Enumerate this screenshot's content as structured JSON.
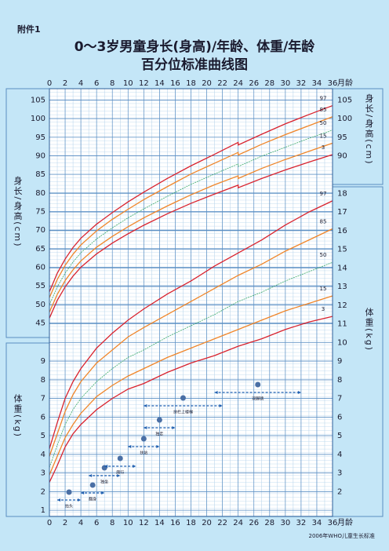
{
  "chart_data": {
    "type": "line",
    "annex": "附件1",
    "title": "0～3岁男童身长(身高)/年龄、体重/年龄",
    "subtitle": "百分位标准曲线图",
    "source": "2006年WHO儿童生长标准",
    "xlabel": "月龄",
    "xlim": [
      0,
      36
    ],
    "xticks": [
      0,
      2,
      4,
      6,
      8,
      10,
      12,
      14,
      16,
      18,
      20,
      22,
      24,
      26,
      28,
      30,
      32,
      34,
      36
    ],
    "length": {
      "ylabel": "身长/身高(cm)",
      "ylim": [
        44,
        107
      ],
      "yticks": [
        45,
        50,
        55,
        60,
        65,
        70,
        75,
        80,
        85,
        90,
        95,
        100,
        105
      ],
      "y2ticks": [
        90,
        95,
        100,
        105
      ],
      "x": [
        0,
        1,
        2,
        3,
        4,
        6,
        8,
        10,
        12,
        15,
        18,
        21,
        24,
        24,
        27,
        30,
        33,
        36
      ],
      "series": [
        {
          "name": "97",
          "color": "#d9232e",
          "values": [
            53.4,
            58.4,
            62.2,
            65.3,
            67.8,
            71.6,
            74.7,
            77.6,
            80.2,
            83.9,
            87.3,
            90.4,
            93.6,
            92.9,
            95.8,
            98.6,
            101.1,
            103.5
          ]
        },
        {
          "name": "85",
          "color": "#f0862a",
          "values": [
            51.8,
            56.7,
            60.5,
            63.5,
            66.0,
            69.8,
            72.9,
            75.6,
            78.2,
            81.7,
            85.1,
            88.0,
            90.9,
            90.2,
            93.1,
            95.7,
            98.1,
            100.5
          ]
        },
        {
          "name": "50",
          "color": "#3aa86a",
          "values": [
            49.9,
            54.7,
            58.4,
            61.4,
            63.9,
            67.6,
            70.6,
            73.3,
            75.7,
            79.1,
            82.3,
            85.1,
            87.8,
            87.1,
            89.9,
            92.3,
            94.7,
            96.9
          ]
        },
        {
          "name": "15",
          "color": "#f0862a",
          "values": [
            47.9,
            52.7,
            56.4,
            59.3,
            61.7,
            65.4,
            68.3,
            70.9,
            73.3,
            76.5,
            79.5,
            82.2,
            84.6,
            83.9,
            86.6,
            89.0,
            91.2,
            93.4
          ]
        },
        {
          "name": "3",
          "color": "#d9232e",
          "values": [
            46.3,
            51.1,
            54.7,
            57.6,
            60.0,
            63.6,
            66.5,
            69.0,
            71.3,
            74.4,
            77.2,
            79.7,
            82.1,
            81.4,
            83.9,
            86.2,
            88.3,
            90.3
          ]
        }
      ]
    },
    "weight": {
      "ylabel": "体重(kg)",
      "ylim": [
        0.5,
        19
      ],
      "yticks": [
        1,
        2,
        3,
        4,
        5,
        6,
        7,
        8,
        9
      ],
      "y2ticks": [
        2,
        3,
        4,
        5,
        6,
        7,
        8,
        9,
        10,
        11,
        12,
        13,
        14,
        15,
        16,
        17,
        18
      ],
      "x": [
        0,
        1,
        2,
        3,
        4,
        6,
        8,
        10,
        12,
        15,
        18,
        21,
        24,
        27,
        30,
        33,
        36
      ],
      "series": [
        {
          "name": "97",
          "color": "#d9232e",
          "values": [
            4.3,
            5.7,
            7.0,
            7.9,
            8.6,
            9.7,
            10.5,
            11.2,
            11.8,
            12.6,
            13.3,
            14.1,
            14.8,
            15.5,
            16.3,
            17.0,
            17.6
          ]
        },
        {
          "name": "85",
          "color": "#f0862a",
          "values": [
            3.9,
            5.1,
            6.3,
            7.2,
            7.9,
            8.9,
            9.6,
            10.3,
            10.8,
            11.5,
            12.2,
            12.9,
            13.6,
            14.2,
            14.9,
            15.5,
            16.1
          ]
        },
        {
          "name": "50",
          "color": "#3aa86a",
          "values": [
            3.3,
            4.5,
            5.6,
            6.4,
            7.0,
            7.9,
            8.6,
            9.2,
            9.6,
            10.3,
            10.9,
            11.5,
            12.2,
            12.7,
            13.3,
            13.8,
            14.3
          ]
        },
        {
          "name": "15",
          "color": "#f0862a",
          "values": [
            2.9,
            3.9,
            4.9,
            5.6,
            6.2,
            7.1,
            7.7,
            8.2,
            8.6,
            9.2,
            9.7,
            10.2,
            10.7,
            11.2,
            11.7,
            12.1,
            12.5
          ]
        },
        {
          "name": "3",
          "color": "#d9232e",
          "values": [
            2.5,
            3.4,
            4.4,
            5.1,
            5.6,
            6.4,
            7.0,
            7.5,
            7.8,
            8.4,
            8.9,
            9.3,
            9.8,
            10.2,
            10.7,
            11.1,
            11.4
          ]
        }
      ]
    },
    "milestones": [
      {
        "label": "抬头",
        "range": [
          1,
          4
        ]
      },
      {
        "label": "翻身",
        "range": [
          4,
          7
        ]
      },
      {
        "label": "独坐",
        "range": [
          5,
          9
        ]
      },
      {
        "label": "爬行",
        "range": [
          7,
          11
        ]
      },
      {
        "label": "扶站",
        "range": [
          10,
          14
        ]
      },
      {
        "label": "独走",
        "range": [
          12,
          16
        ]
      },
      {
        "label": "扶栏上楼梯",
        "range": [
          12,
          22
        ]
      },
      {
        "label": "双脚跳",
        "range": [
          21,
          32
        ]
      }
    ]
  }
}
